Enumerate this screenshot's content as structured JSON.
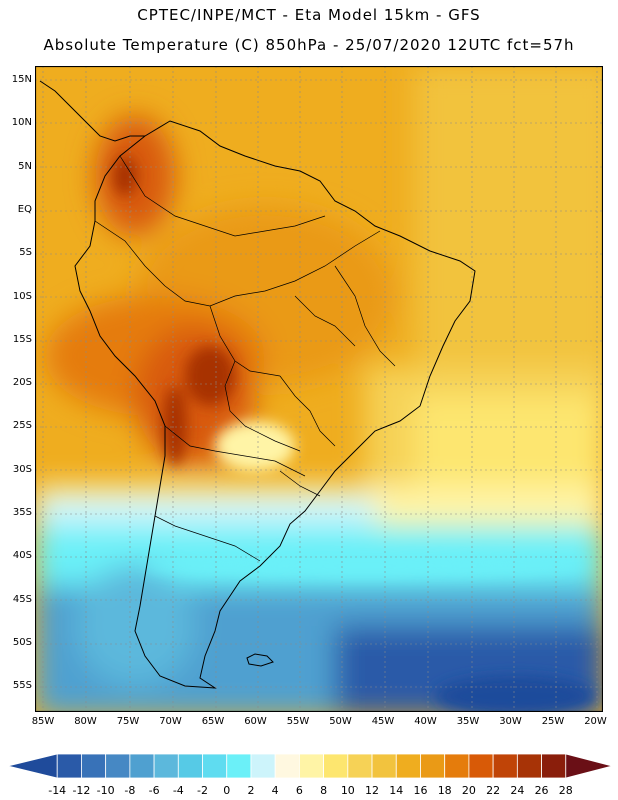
{
  "header": {
    "line1": "CPTEC/INPE/MCT -  Eta Model 15km - GFS",
    "line2": "Absolute Temperature (C) 850hPa - 25/07/2020 12UTC fct=57h"
  },
  "map": {
    "lat_labels": [
      "15N",
      "10N",
      "5N",
      "EQ",
      "5S",
      "10S",
      "15S",
      "20S",
      "25S",
      "30S",
      "35S",
      "40S",
      "45S",
      "50S",
      "55S"
    ],
    "lon_labels": [
      "85W",
      "80W",
      "75W",
      "70W",
      "65W",
      "60W",
      "55W",
      "50W",
      "45W",
      "40W",
      "35W",
      "30W",
      "25W",
      "20W"
    ]
  },
  "legend": {
    "labels": [
      "-14",
      "-12",
      "-10",
      "-8",
      "-6",
      "-4",
      "-2",
      "0",
      "2",
      "4",
      "6",
      "8",
      "10",
      "12",
      "14",
      "16",
      "18",
      "20",
      "22",
      "24",
      "26",
      "28"
    ],
    "colors": [
      "#1f4b9b",
      "#2a5aa8",
      "#3872b8",
      "#4688c4",
      "#4fa0d0",
      "#5cb8dc",
      "#56cae6",
      "#5fdcf0",
      "#6bf0f8",
      "#cdf4fb",
      "#fff8e0",
      "#fff4a6",
      "#fde66f",
      "#f6d256",
      "#f2c33e",
      "#efad1f",
      "#ea9a16",
      "#e57c0c",
      "#d85a07",
      "#c04407",
      "#a73306",
      "#8a1e0b",
      "#6a0f16"
    ]
  }
}
